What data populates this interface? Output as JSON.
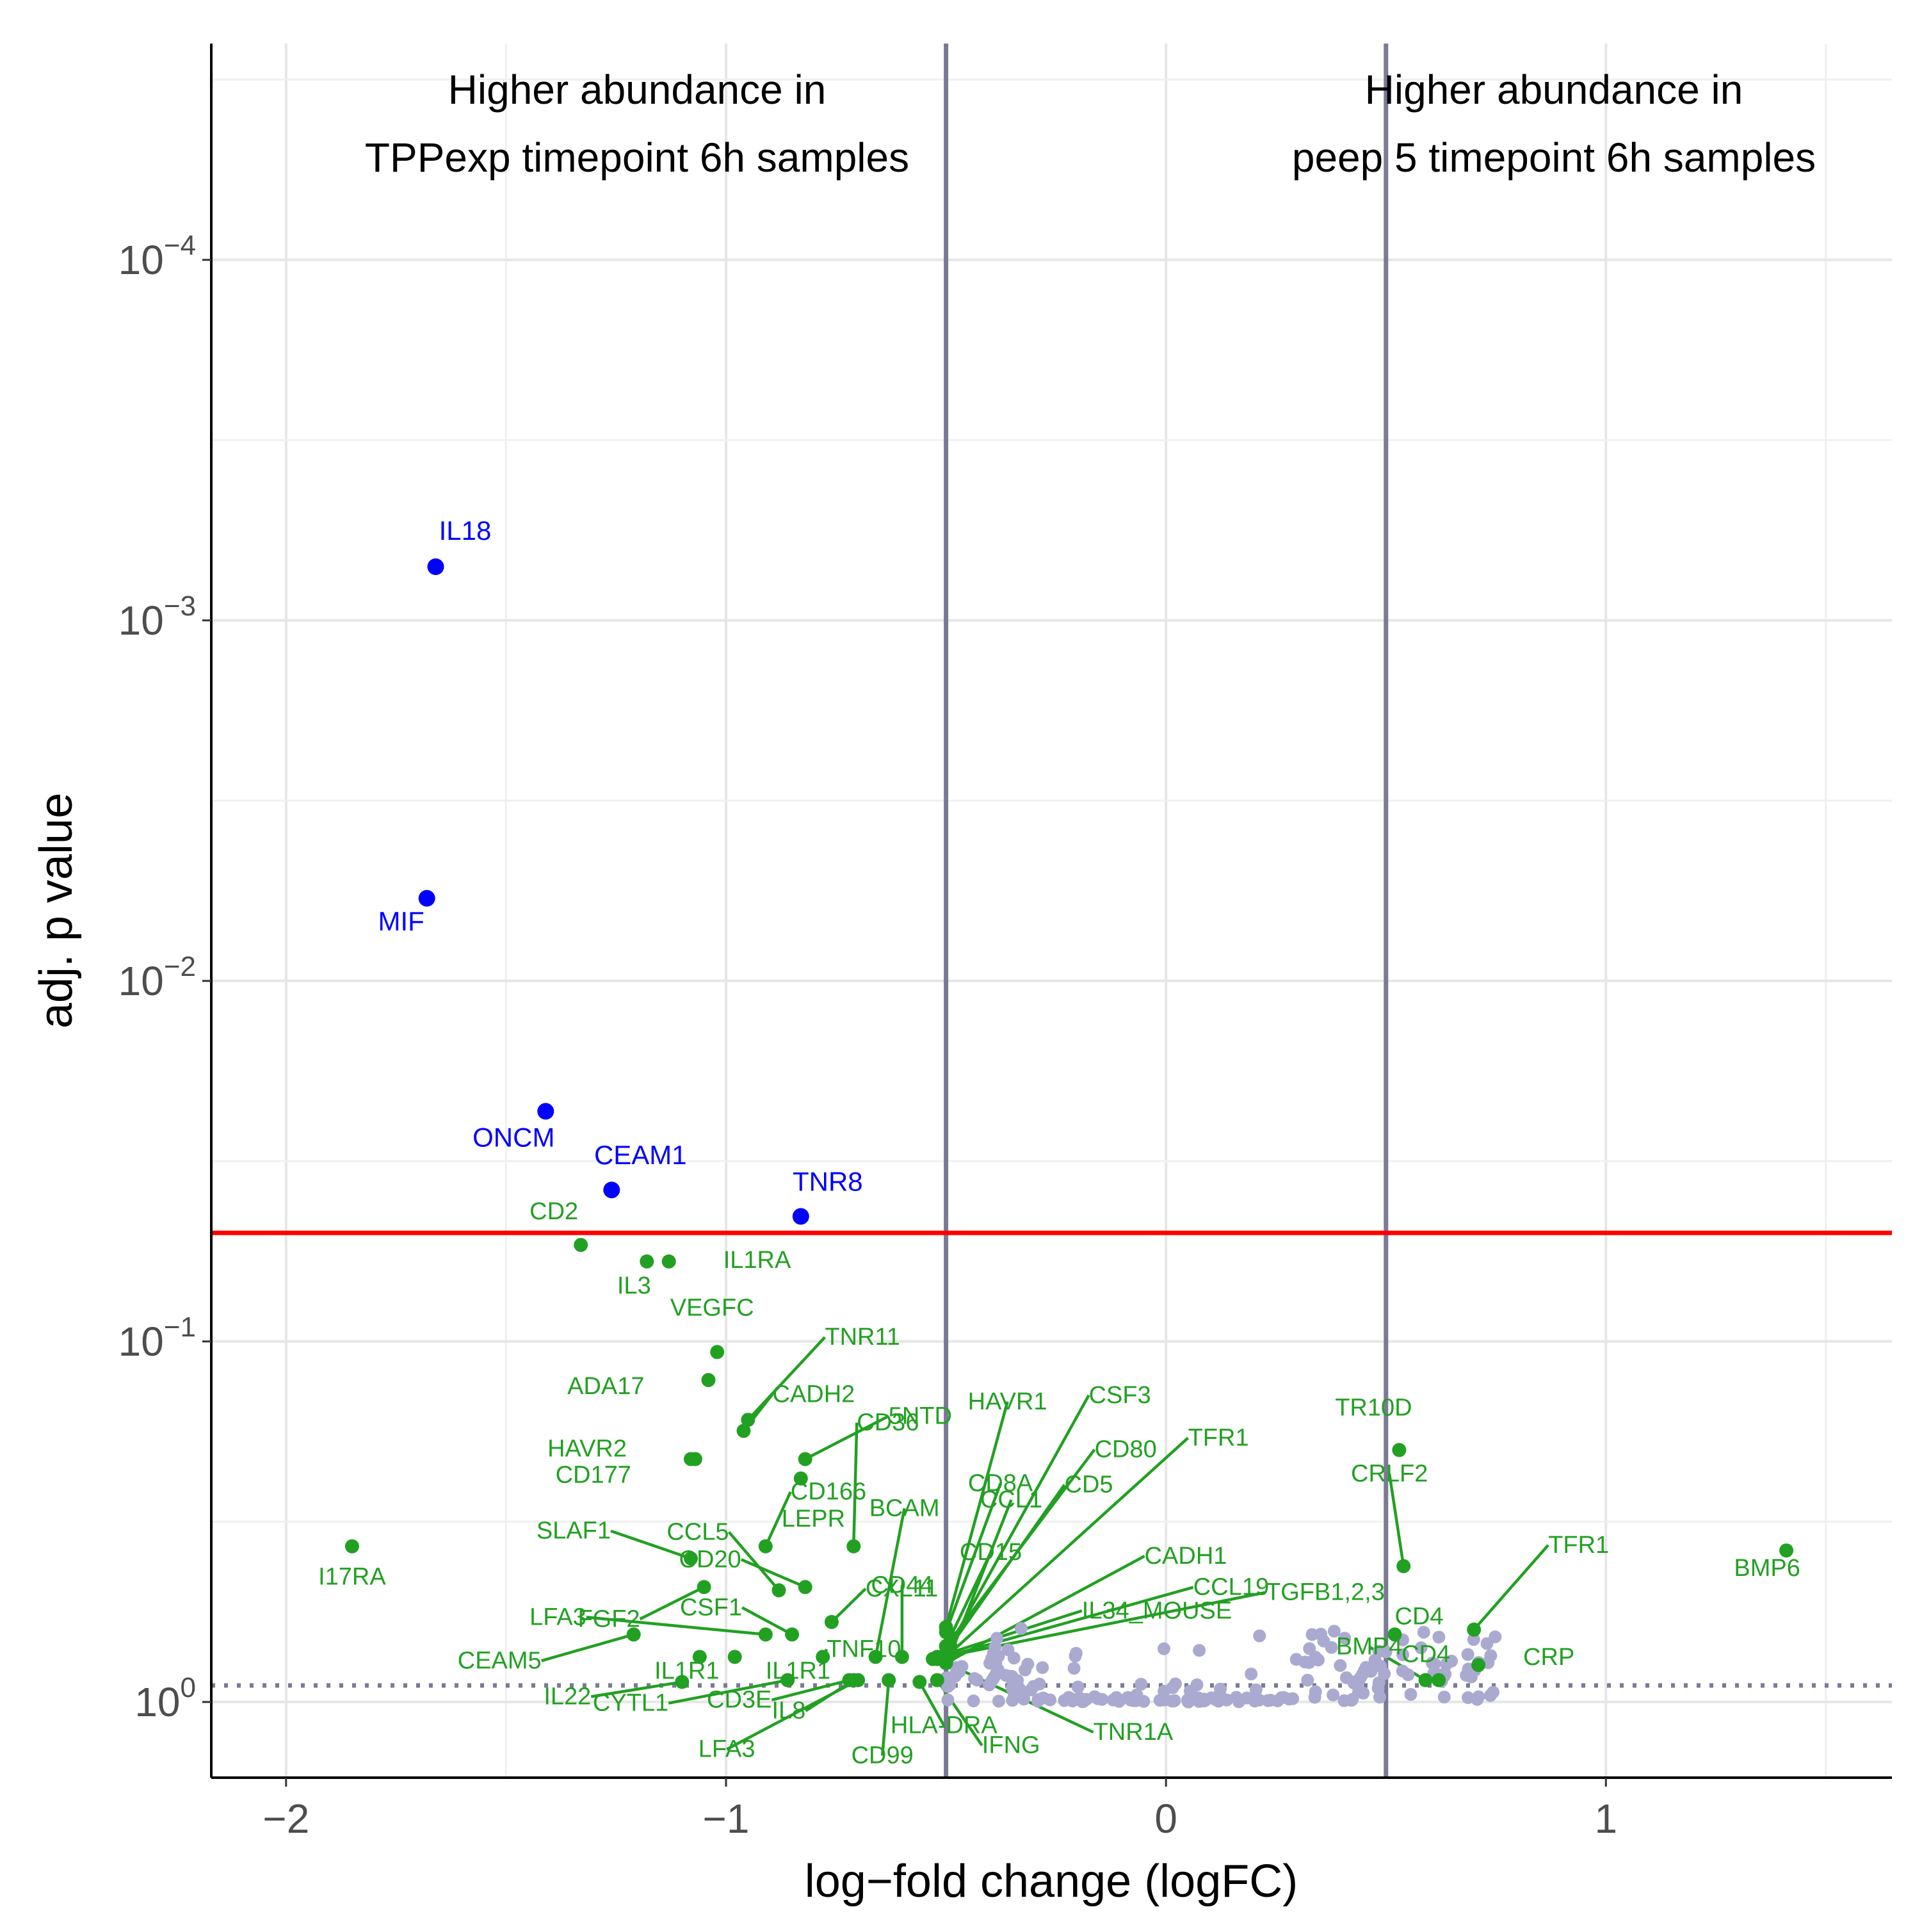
{
  "chart_data": {
    "type": "scatter",
    "title": "",
    "xlabel": "log−fold change (logFC)",
    "ylabel": "adj. p value",
    "xlim": [
      -2.17,
      1.65
    ],
    "ylim_log10": [
      0.21,
      -4.6
    ],
    "y_scale": "log10 reversed",
    "x_ticks": [
      -2,
      -1,
      0,
      1
    ],
    "x_tick_labels": [
      "−2",
      "−1",
      "0",
      "1"
    ],
    "y_ticks": [
      {
        "value": 1,
        "base": "10",
        "exp": "0"
      },
      {
        "value": 0.1,
        "base": "10",
        "exp": "−1"
      },
      {
        "value": 0.01,
        "base": "10",
        "exp": "−2"
      },
      {
        "value": 0.001,
        "base": "10",
        "exp": "−3"
      },
      {
        "value": 0.0001,
        "base": "10",
        "exp": "−4"
      }
    ],
    "grid": true,
    "annotations": {
      "left": [
        "Higher abundance in",
        "TPPexp timepoint 6h samples"
      ],
      "right": [
        "Higher abundance in",
        "peep 5 timepoint 6h samples"
      ]
    },
    "thresholds": {
      "logfc_lines": [
        -0.5,
        0.5
      ],
      "adj_p_cutoff": 0.05,
      "nominal_p_line": 0.9
    },
    "colors": {
      "significant": "#0000ff",
      "nominal": "#22a022",
      "not_significant": "#aaaad0",
      "cutoff_line": "#ff0000",
      "fc_line": "#7a7a96"
    },
    "significant_points": [
      {
        "label": "IL18",
        "x": -1.66,
        "p": 0.00071
      },
      {
        "label": "MIF",
        "x": -1.68,
        "p": 0.0059
      },
      {
        "label": "ONCM",
        "x": -1.41,
        "p": 0.023
      },
      {
        "label": "CEAM1",
        "x": -1.26,
        "p": 0.038
      },
      {
        "label": "TNR8",
        "x": -0.83,
        "p": 0.045
      }
    ],
    "nominal_points": [
      {
        "label": "CD2",
        "x": -1.33,
        "p": 0.054
      },
      {
        "label": "IL3",
        "x": -1.18,
        "p": 0.06
      },
      {
        "label": "IL1RA",
        "x": -1.13,
        "p": 0.06
      },
      {
        "label": "VEGFC",
        "x": -1.02,
        "p": 0.107
      },
      {
        "label": "ADA17",
        "x": -1.04,
        "p": 0.128
      },
      {
        "label": "TNR11",
        "x": -0.95,
        "p": 0.165
      },
      {
        "label": "CADH2",
        "x": -0.96,
        "p": 0.177
      },
      {
        "label": "HAVR2",
        "x": -1.08,
        "p": 0.212
      },
      {
        "label": "CD177",
        "x": -1.07,
        "p": 0.212
      },
      {
        "label": "5NTD",
        "x": -0.82,
        "p": 0.212
      },
      {
        "label": "LEPR",
        "x": -0.83,
        "p": 0.24
      },
      {
        "label": "CD36",
        "x": -0.71,
        "p": 0.37
      },
      {
        "label": "CD166",
        "x": -0.91,
        "p": 0.37
      },
      {
        "label": "SLAF1",
        "x": -1.08,
        "p": 0.4
      },
      {
        "label": "CCL5",
        "x": -0.88,
        "p": 0.49
      },
      {
        "label": "FGF2",
        "x": -1.05,
        "p": 0.48
      },
      {
        "label": "CD20",
        "x": -0.82,
        "p": 0.48
      },
      {
        "label": "CXL11",
        "x": -0.76,
        "p": 0.6
      },
      {
        "label": "CSF1",
        "x": -0.85,
        "p": 0.65
      },
      {
        "label": "LFA3",
        "x": -0.91,
        "p": 0.65
      },
      {
        "label": "IL1R1",
        "x": -1.06,
        "p": 0.75
      },
      {
        "label": "IL1R1",
        "x": -0.98,
        "p": 0.75
      },
      {
        "label": "TNF10",
        "x": -0.78,
        "p": 0.75
      },
      {
        "label": "CEAM5",
        "x": -1.21,
        "p": 0.65
      },
      {
        "label": "IL22",
        "x": -1.1,
        "p": 0.88
      },
      {
        "label": "CYTL1",
        "x": -0.86,
        "p": 0.87
      },
      {
        "label": "CD3E",
        "x": -0.72,
        "p": 0.87
      },
      {
        "label": "IL8",
        "x": -0.71,
        "p": 0.87
      },
      {
        "label": "LFA3",
        "x": -0.7,
        "p": 0.87
      },
      {
        "label": "CD99",
        "x": -0.63,
        "p": 0.87
      },
      {
        "label": "HLA-DRA",
        "x": -0.56,
        "p": 0.88
      },
      {
        "label": "IFNG",
        "x": -0.52,
        "p": 0.87
      },
      {
        "label": "TNR1A",
        "x": -0.5,
        "p": 0.78
      },
      {
        "label": "BCAM",
        "x": -0.66,
        "p": 0.75
      },
      {
        "label": "CD44",
        "x": -0.6,
        "p": 0.75
      },
      {
        "label": "CD8A",
        "x": -0.5,
        "p": 0.64
      },
      {
        "label": "HAVR1",
        "x": -0.5,
        "p": 0.62
      },
      {
        "label": "CD15",
        "x": -0.49,
        "p": 0.66
      },
      {
        "label": "CCL1",
        "x": -0.49,
        "p": 0.74
      },
      {
        "label": "CD5",
        "x": -0.49,
        "p": 0.7
      },
      {
        "label": "CD80",
        "x": -0.5,
        "p": 0.7
      },
      {
        "label": "CSF3",
        "x": -0.5,
        "p": 0.73
      },
      {
        "label": "TFR1",
        "x": -0.5,
        "p": 0.75
      },
      {
        "label": "CADH1",
        "x": -0.5,
        "p": 0.78
      },
      {
        "label": "CCL19",
        "x": -0.52,
        "p": 0.76
      },
      {
        "label": "IL34_MOUSE",
        "x": -0.52,
        "p": 0.75
      },
      {
        "label": "TGFB1,2,3",
        "x": -0.53,
        "p": 0.76
      },
      {
        "label": "I17RA",
        "x": -1.85,
        "p": 0.37
      },
      {
        "label": "TR10D",
        "x": 0.53,
        "p": 0.2
      },
      {
        "label": "CRLF2",
        "x": 0.54,
        "p": 0.42
      },
      {
        "label": "TFR1",
        "x": 0.7,
        "p": 0.63
      },
      {
        "label": "CD4",
        "x": 0.52,
        "p": 0.65
      },
      {
        "label": "CD4",
        "x": 0.62,
        "p": 0.87
      },
      {
        "label": "BMP4",
        "x": 0.59,
        "p": 0.87
      },
      {
        "label": "CRP",
        "x": 0.71,
        "p": 0.79
      },
      {
        "label": "BMP6",
        "x": 1.41,
        "p": 0.38
      }
    ],
    "not_significant_points_summary": "approx. 200 points with logFC between -0.5 and 0.75 and adj. p between 0.6 and 1.0"
  }
}
